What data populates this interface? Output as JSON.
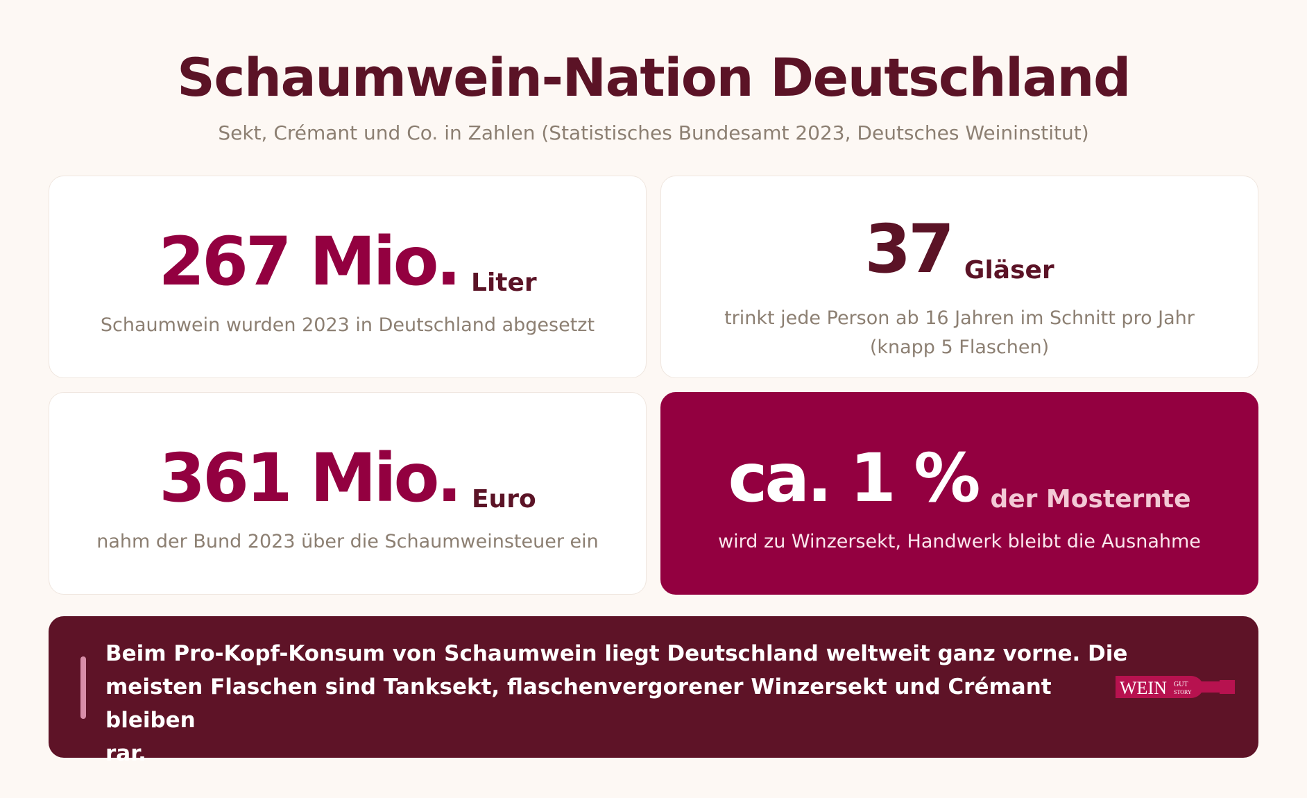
{
  "header": {
    "title": "Schaumwein-Nation Deutschland",
    "subtitle": "Sekt, Crémant und Co. in Zahlen (Statistisches Bundesamt 2023, Deutsches Weininstitut)"
  },
  "stats": [
    {
      "value": "267 Mio.",
      "unit": "Liter",
      "description": "Schaumwein wurden 2023 in Deutschland abgesetzt"
    },
    {
      "value": "37",
      "unit": "Gläser",
      "description_line1": "trinkt jede Person ab 16 Jahren im Schnitt pro Jahr",
      "description_line2": "(knapp 5 Flaschen)"
    },
    {
      "value": "361 Mio.",
      "unit": "Euro",
      "description": "nahm der Bund 2023 über die Schaumweinsteuer ein"
    },
    {
      "value": "ca. 1 %",
      "unit": "der Mosternte",
      "description": "wird zu Winzersekt, Handwerk bleibt die Ausnahme"
    }
  ],
  "banner": {
    "line1": "Beim Pro-Kopf-Konsum von Schaumwein liegt Deutschland weltweit ganz vorne. Die",
    "line2": "meisten Flaschen sind Tanksekt, flaschenvergorener Winzersekt und Crémant bleiben",
    "line3": "rar."
  },
  "logo": {
    "word": "WEIN",
    "top": "GUT",
    "bottom": "STORY",
    "color": "#b7124f"
  }
}
